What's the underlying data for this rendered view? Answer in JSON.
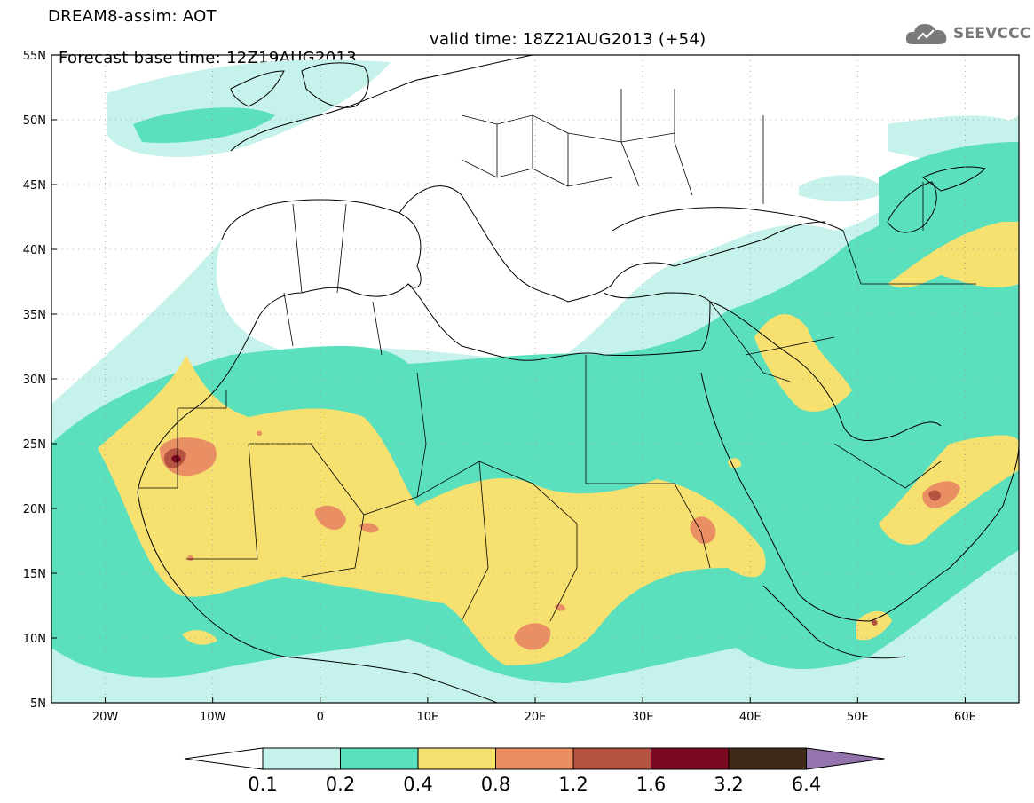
{
  "title": {
    "line1": "DREAM8-assim: AOT",
    "base_time": "Forecast base time: 12Z19AUG2013",
    "valid_time": "valid time: 18Z21AUG2013 (+54)"
  },
  "logo": {
    "text": "SEEVCCC",
    "icon": "cloud-icon"
  },
  "axes": {
    "lon_labels": [
      "20W",
      "10W",
      "0",
      "10E",
      "20E",
      "30E",
      "40E",
      "50E",
      "60E"
    ],
    "lat_labels": [
      "55N",
      "50N",
      "45N",
      "40N",
      "35N",
      "30N",
      "25N",
      "20N",
      "15N",
      "10N",
      "5N"
    ],
    "lon_range": [
      -25,
      65
    ],
    "lat_range": [
      5,
      55
    ]
  },
  "colorbar": {
    "labels": [
      "0.1",
      "0.2",
      "0.4",
      "0.8",
      "1.2",
      "1.6",
      "3.2",
      "6.4"
    ],
    "colors": [
      "#c6f2ec",
      "#5ae0bc",
      "#f6e070",
      "#ea8e63",
      "#b35340",
      "#7a0a1f",
      "#3f2816",
      "#9474ac"
    ]
  },
  "field_colors": {
    "low": "#c6f2ec",
    "mid": "#5ae0bc",
    "high": "#f6e070",
    "vhigh": "#ea8e63",
    "extreme": "#b35340",
    "max": "#7a0a1f"
  }
}
